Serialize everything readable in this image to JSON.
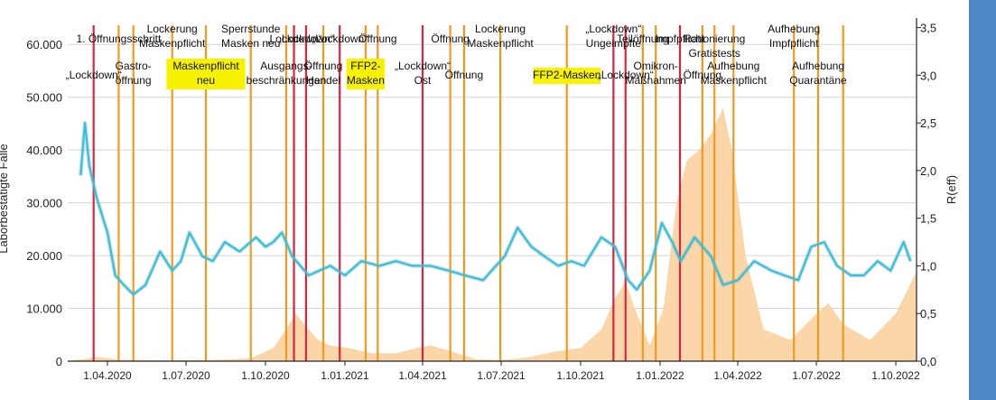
{
  "chart_data": {
    "type": "line",
    "title": "",
    "ylabel_left": "Laborbestätigte Fälle",
    "ylabel_right": "R(eff)",
    "x_range": [
      "2020-02-15",
      "2022-10-25"
    ],
    "ylim_left": [
      0,
      65000
    ],
    "ylim_right": [
      0,
      3.6
    ],
    "grid": "horizontal",
    "x_ticks": [
      "2020-04-01",
      "2020-07-01",
      "2020-10-01",
      "2021-01-01",
      "2021-04-01",
      "2021-07-01",
      "2021-10-01",
      "2022-01-01",
      "2022-04-01",
      "2022-07-01",
      "2022-10-01"
    ],
    "x_tick_labels": [
      "1.04.2020",
      "1.07.2020",
      "1.10.2020",
      "1.01.2021",
      "1.04.2021",
      "1.07.2021",
      "1.10.2021",
      "1.01.2022",
      "1.04.2022",
      "1.07.2022",
      "1.10.2022"
    ],
    "y_ticks_left": [
      0,
      10000,
      20000,
      30000,
      40000,
      50000,
      60000
    ],
    "y_tick_labels_left": [
      "0",
      "10.000",
      "20.000",
      "30.000",
      "40.000",
      "50.000",
      "60.000"
    ],
    "y_ticks_right": [
      0,
      0.5,
      1.0,
      1.5,
      2.0,
      2.5,
      3.0,
      3.5
    ],
    "y_tick_labels_right": [
      "0,0",
      "0,5",
      "1,0",
      "1,5",
      "2,0",
      "2,5",
      "3,0",
      "3,5"
    ],
    "series": [
      {
        "name": "",
        "kind": "area",
        "axis": "left",
        "color": "#fbd2a0",
        "x": [
          "2020-02-15",
          "2020-03-20",
          "2020-04-15",
          "2020-06-01",
          "2020-08-01",
          "2020-09-15",
          "2020-10-10",
          "2020-10-25",
          "2020-11-05",
          "2020-11-15",
          "2020-12-01",
          "2020-12-15",
          "2021-01-05",
          "2021-02-01",
          "2021-03-01",
          "2021-03-25",
          "2021-04-10",
          "2021-05-01",
          "2021-06-01",
          "2021-07-01",
          "2021-08-01",
          "2021-09-01",
          "2021-10-01",
          "2021-10-25",
          "2021-11-10",
          "2021-11-22",
          "2021-12-05",
          "2021-12-20",
          "2022-01-05",
          "2022-01-20",
          "2022-02-01",
          "2022-02-15",
          "2022-03-01",
          "2022-03-15",
          "2022-03-25",
          "2022-04-10",
          "2022-05-01",
          "2022-06-01",
          "2022-07-01",
          "2022-07-15",
          "2022-08-01",
          "2022-09-01",
          "2022-10-01",
          "2022-10-25"
        ],
        "values": [
          0,
          800,
          300,
          150,
          200,
          600,
          2500,
          6000,
          9000,
          7000,
          4000,
          3000,
          2500,
          1500,
          1500,
          2500,
          3000,
          2000,
          400,
          200,
          700,
          1800,
          2500,
          6000,
          12000,
          15000,
          9000,
          3000,
          10000,
          30000,
          38000,
          40000,
          43000,
          48000,
          40000,
          20000,
          6000,
          4000,
          9000,
          11000,
          7000,
          4000,
          9000,
          17000
        ]
      },
      {
        "name": "R(eff)",
        "kind": "line",
        "axis": "right",
        "color": "#29c5df",
        "x": [
          "2020-03-01",
          "2020-03-06",
          "2020-03-11",
          "2020-03-20",
          "2020-04-01",
          "2020-04-10",
          "2020-04-20",
          "2020-05-01",
          "2020-05-15",
          "2020-06-01",
          "2020-06-15",
          "2020-06-25",
          "2020-07-05",
          "2020-07-20",
          "2020-08-01",
          "2020-08-15",
          "2020-09-01",
          "2020-09-20",
          "2020-10-01",
          "2020-10-10",
          "2020-10-20",
          "2020-11-01",
          "2020-11-20",
          "2020-12-15",
          "2021-01-01",
          "2021-01-20",
          "2021-02-10",
          "2021-03-01",
          "2021-03-20",
          "2021-04-10",
          "2021-05-01",
          "2021-05-20",
          "2021-06-10",
          "2021-06-25",
          "2021-07-05",
          "2021-07-20",
          "2021-08-05",
          "2021-08-20",
          "2021-09-05",
          "2021-09-20",
          "2021-10-05",
          "2021-10-25",
          "2021-11-10",
          "2021-11-25",
          "2021-12-05",
          "2021-12-20",
          "2022-01-03",
          "2022-01-15",
          "2022-01-25",
          "2022-02-10",
          "2022-03-01",
          "2022-03-15",
          "2022-04-01",
          "2022-04-20",
          "2022-05-10",
          "2022-05-25",
          "2022-06-10",
          "2022-06-25",
          "2022-07-10",
          "2022-07-25",
          "2022-08-10",
          "2022-08-25",
          "2022-09-10",
          "2022-09-25",
          "2022-10-10",
          "2022-10-18"
        ],
        "values": [
          1.95,
          2.5,
          2.05,
          1.7,
          1.35,
          0.9,
          0.8,
          0.7,
          0.8,
          1.15,
          0.95,
          1.05,
          1.35,
          1.1,
          1.05,
          1.25,
          1.15,
          1.3,
          1.2,
          1.25,
          1.35,
          1.1,
          0.9,
          1.0,
          0.9,
          1.05,
          1.0,
          1.05,
          1.0,
          1.0,
          0.95,
          0.9,
          0.85,
          1.0,
          1.1,
          1.4,
          1.2,
          1.1,
          1.0,
          1.05,
          1.0,
          1.3,
          1.2,
          0.85,
          0.75,
          0.95,
          1.45,
          1.25,
          1.05,
          1.3,
          1.1,
          0.8,
          0.85,
          1.05,
          0.95,
          0.9,
          0.85,
          1.2,
          1.25,
          1.0,
          0.9,
          0.9,
          1.05,
          0.95,
          1.25,
          1.05
        ]
      }
    ],
    "events": [
      {
        "date": "2020-03-16",
        "type": "red",
        "label": [
          "„Lockdown“"
        ],
        "row": 3,
        "highlight": false
      },
      {
        "date": "2020-04-14",
        "type": "orange",
        "label": [
          "1. Öffnungsschritt"
        ],
        "row": 1,
        "highlight": false
      },
      {
        "date": "2020-05-01",
        "type": "orange",
        "label": [
          "Gastro-",
          "öffnung"
        ],
        "row": 2,
        "highlight": false
      },
      {
        "date": "2020-06-15",
        "type": "orange",
        "label": [
          "Lockerung",
          "Maskenpflicht"
        ],
        "row": 0,
        "highlight": false
      },
      {
        "date": "2020-07-24",
        "type": "orange",
        "label": [
          "Maskenpflicht",
          "neu"
        ],
        "row": 2,
        "highlight": true
      },
      {
        "date": "2020-09-14",
        "type": "orange",
        "label": [
          "Sperrstunde",
          "Masken neu"
        ],
        "row": 0,
        "highlight": false
      },
      {
        "date": "2020-10-25",
        "type": "orange",
        "label": [
          "Ausgangs-",
          "beschränkungen"
        ],
        "row": 2,
        "highlight": false
      },
      {
        "date": "2020-11-03",
        "type": "red",
        "label": [
          "„Lockdown“"
        ],
        "row": 1,
        "highlight": false
      },
      {
        "date": "2020-11-17",
        "type": "red",
        "label": [
          "„Lockdown“"
        ],
        "row": 1,
        "highlight": false
      },
      {
        "date": "2020-12-07",
        "type": "orange",
        "label": [
          "Öffnung",
          "Handel"
        ],
        "row": 2,
        "highlight": false
      },
      {
        "date": "2020-12-26",
        "type": "red",
        "label": [
          "„Lockdown“"
        ],
        "row": 1,
        "highlight": false
      },
      {
        "date": "2021-01-25",
        "type": "orange",
        "label": [
          "FFP2-",
          "Masken"
        ],
        "row": 2,
        "highlight": true
      },
      {
        "date": "2021-02-08",
        "type": "orange",
        "label": [
          "Öffnung"
        ],
        "row": 1,
        "highlight": false
      },
      {
        "date": "2021-04-01",
        "type": "red",
        "label": [
          "„Lockdown“",
          "Ost"
        ],
        "row": 2,
        "highlight": false
      },
      {
        "date": "2021-05-03",
        "type": "orange",
        "label": [
          "Öffnung"
        ],
        "row": 1,
        "highlight": false
      },
      {
        "date": "2021-05-19",
        "type": "orange",
        "label": [
          "Öffnung"
        ],
        "row": 3,
        "highlight": false
      },
      {
        "date": "2021-06-30",
        "type": "orange",
        "label": [
          "Lockerung",
          "Maskenpflicht"
        ],
        "row": 0,
        "highlight": false
      },
      {
        "date": "2021-09-15",
        "type": "orange",
        "label": [
          "FFP2-Masken"
        ],
        "row": 3,
        "highlight": true
      },
      {
        "date": "2021-11-08",
        "type": "red",
        "label": [
          "„Lockdown“",
          "Ungeimpfte"
        ],
        "row": 0,
        "highlight": false
      },
      {
        "date": "2021-11-22",
        "type": "red",
        "label": [
          "„Lockdown“"
        ],
        "row": 3,
        "highlight": false
      },
      {
        "date": "2021-12-12",
        "type": "orange",
        "label": [
          "Teilöffnung"
        ],
        "row": 1,
        "highlight": false
      },
      {
        "date": "2021-12-27",
        "type": "orange",
        "label": [
          "Omikron-",
          "Maßnahmen"
        ],
        "row": 2,
        "highlight": false
      },
      {
        "date": "2022-01-24",
        "type": "red",
        "label": [
          "Impfpflicht"
        ],
        "row": 1,
        "highlight": false
      },
      {
        "date": "2022-02-19",
        "type": "orange",
        "label": [
          "Öffnung"
        ],
        "row": 3,
        "highlight": false
      },
      {
        "date": "2022-03-05",
        "type": "orange",
        "label": [
          "Rationierung",
          "Gratistests"
        ],
        "row": 1,
        "highlight": false
      },
      {
        "date": "2022-03-27",
        "type": "orange",
        "label": [
          "Aufhebung",
          "Maskenpflicht"
        ],
        "row": 2,
        "highlight": false
      },
      {
        "date": "2022-06-05",
        "type": "orange",
        "label": [
          "Aufhebung",
          "Impfpflicht"
        ],
        "row": 0,
        "highlight": false
      },
      {
        "date": "2022-07-03",
        "type": "orange",
        "label": [
          "Aufhebung",
          "Quarantäne"
        ],
        "row": 2,
        "highlight": false
      },
      {
        "date": "2022-08-01",
        "type": "orange",
        "label": [],
        "row": 0,
        "highlight": false
      }
    ],
    "colors": {
      "red_event": "#d7263d",
      "orange_event": "#f39a1e",
      "highlight": "#f6f200",
      "sidebar": "#4f86c6",
      "grid": "#d6d6d6"
    }
  }
}
